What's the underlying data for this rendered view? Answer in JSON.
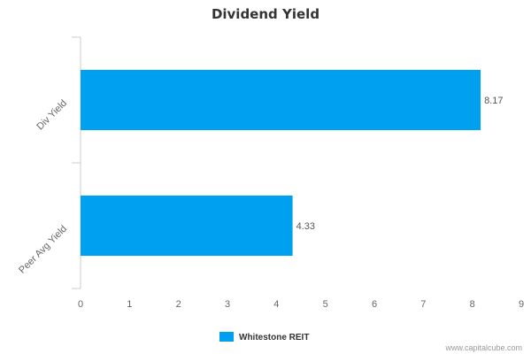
{
  "chart_data": {
    "type": "bar",
    "orientation": "horizontal",
    "title": "Dividend Yield",
    "categories": [
      "Div Yield",
      "Peer Avg Yield"
    ],
    "series": [
      {
        "name": "Whitestone REIT",
        "values": [
          8.17,
          4.33
        ]
      }
    ],
    "xlim": [
      0,
      9
    ],
    "xticks": [
      "0",
      "1",
      "2",
      "3",
      "4",
      "5",
      "6",
      "7",
      "8",
      "9"
    ],
    "data_labels": [
      "8.17",
      "4.33"
    ],
    "grid": false,
    "legend_position": "bottom"
  },
  "colors": {
    "bar": "#00a0f0",
    "axis": "#cccccc"
  },
  "credit": "www.capitalcube.com"
}
